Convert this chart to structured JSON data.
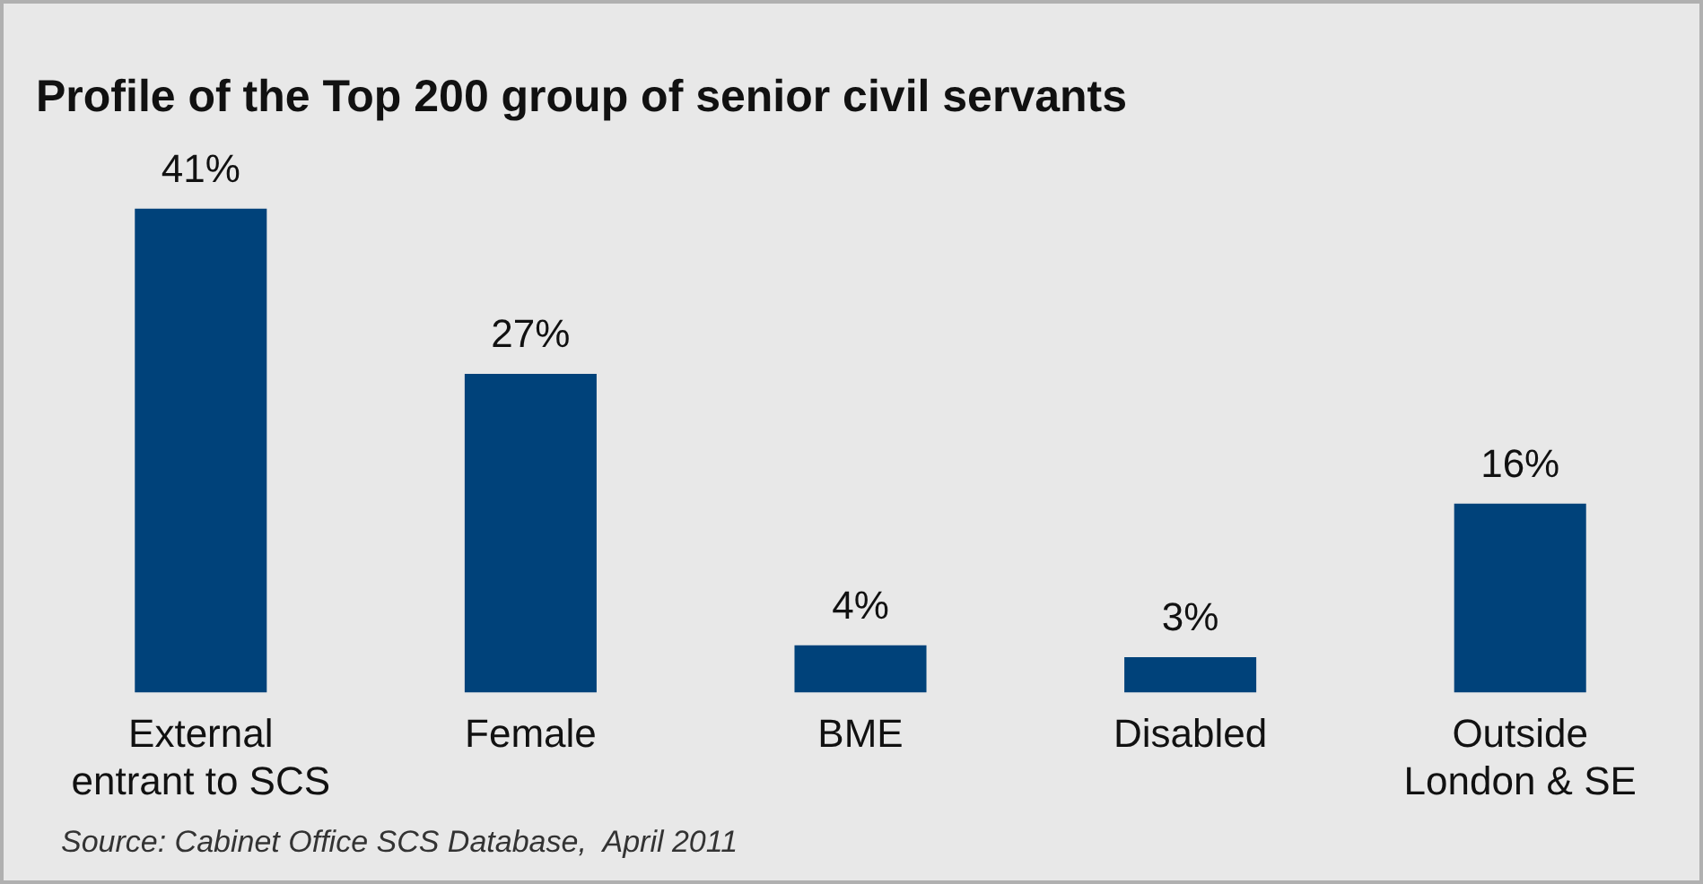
{
  "chart_data": {
    "type": "bar",
    "title": "Profile of the Top 200 group of senior civil servants",
    "categories": [
      "External\nentrant to SCS",
      "Female",
      "BME",
      "Disabled",
      "Outside\nLondon & SE"
    ],
    "values": [
      41,
      27,
      4,
      3,
      16
    ],
    "value_labels": [
      "41%",
      "27%",
      "4%",
      "3%",
      "16%"
    ],
    "color": "#00427a",
    "annotations": [
      "Source: Cabinet Office SCS Database,  April 2011"
    ]
  }
}
